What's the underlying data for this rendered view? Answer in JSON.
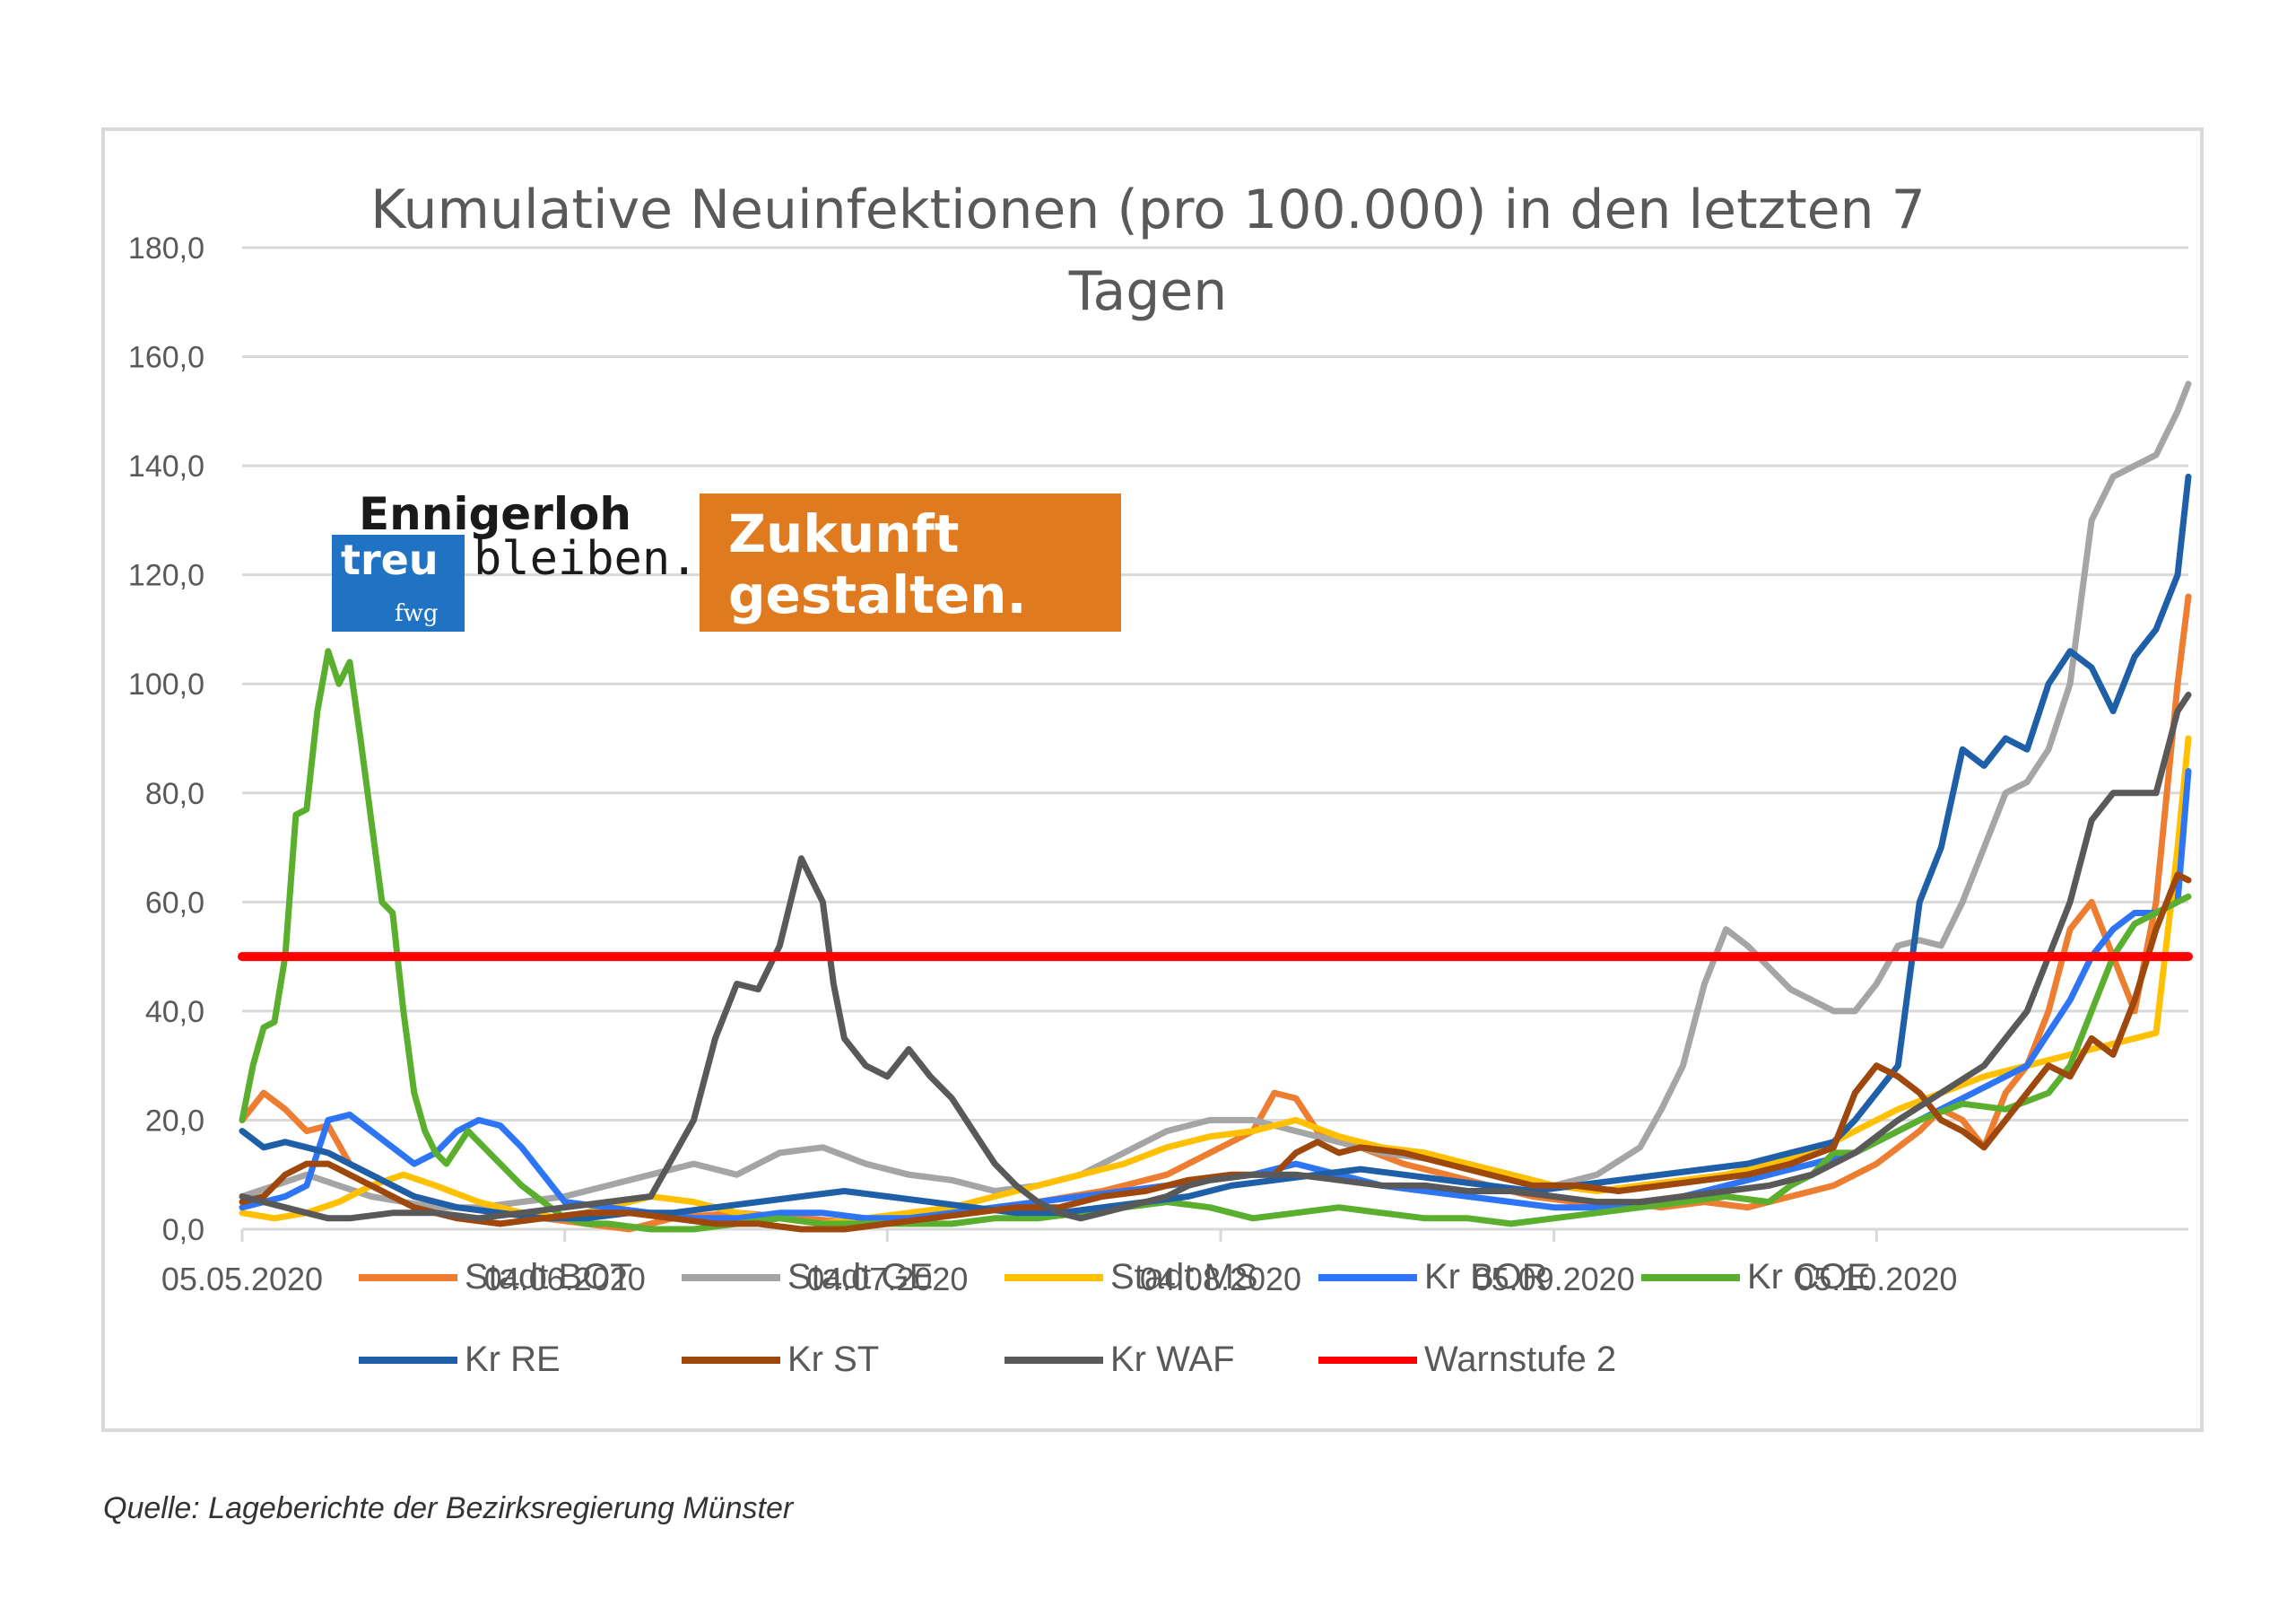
{
  "colors": {
    "stadt_bot": "#ED7D31",
    "stadt_ge": "#A5A5A5",
    "stadt_ms": "#FFC000",
    "kr_bor": "#2E75F6",
    "kr_coe": "#5BAF2E",
    "kr_re": "#1F5FA8",
    "kr_st": "#9E480E",
    "kr_waf": "#595959",
    "warnstufe": "#FF0000",
    "logo_blue": "#1F73C2",
    "logo_orange": "#E07A1E"
  },
  "logo": {
    "line1": "Ennigerloh",
    "treu": "treu",
    "bleiben": "bleiben.",
    "fwg": "fwg",
    "zukunft": "Zukunft",
    "gestalten": "gestalten."
  },
  "source": "Quelle: Lageberichte der Bezirksregierung Münster",
  "chart_data": {
    "type": "line",
    "title": "Kumulative Neuinfektionen (pro 100.000) in den letzten 7 Tagen",
    "title_lines": [
      "Kumulative Neuinfektionen (pro 100.000) in den letzten 7",
      "Tagen"
    ],
    "xlabel": "",
    "ylabel": "",
    "ylim": [
      0,
      180
    ],
    "yticks": [
      "0,0",
      "20,0",
      "40,0",
      "60,0",
      "80,0",
      "100,0",
      "120,0",
      "140,0",
      "160,0",
      "180,0"
    ],
    "x_day_range": [
      0,
      181
    ],
    "xticks": [
      {
        "day": 0,
        "label": "05.05.2020"
      },
      {
        "day": 30,
        "label": "04.06.2020"
      },
      {
        "day": 60,
        "label": "04.07.2020"
      },
      {
        "day": 91,
        "label": "04.08.2020"
      },
      {
        "day": 122,
        "label": "05.09.2020"
      },
      {
        "day": 152,
        "label": "05.10.2020"
      }
    ],
    "grid": true,
    "legend_position": "bottom",
    "series": [
      {
        "key": "stadt_bot",
        "name": "Stadt BOT",
        "x": [
          0,
          2,
          4,
          6,
          8,
          10,
          12,
          14,
          16,
          18,
          20,
          24,
          28,
          32,
          36,
          40,
          46,
          52,
          58,
          64,
          70,
          74,
          80,
          86,
          90,
          94,
          96,
          98,
          100,
          104,
          108,
          112,
          116,
          120,
          124,
          128,
          132,
          136,
          140,
          144,
          146,
          148,
          150,
          152,
          156,
          158,
          160,
          162,
          164,
          166,
          168,
          170,
          172,
          174,
          176,
          178,
          180,
          181
        ],
        "values": [
          20,
          25,
          22,
          18,
          19,
          12,
          10,
          8,
          6,
          5,
          4,
          3,
          2,
          1,
          0,
          2,
          3,
          2,
          1,
          2,
          4,
          5,
          7,
          10,
          14,
          18,
          25,
          24,
          18,
          15,
          12,
          10,
          8,
          6,
          5,
          5,
          4,
          5,
          4,
          6,
          7,
          8,
          10,
          12,
          18,
          22,
          20,
          15,
          25,
          30,
          40,
          55,
          60,
          50,
          40,
          60,
          100,
          116
        ]
      },
      {
        "key": "stadt_ge",
        "name": "Stadt GE",
        "x": [
          0,
          3,
          6,
          9,
          12,
          15,
          18,
          22,
          26,
          30,
          34,
          38,
          42,
          46,
          50,
          54,
          58,
          62,
          66,
          70,
          74,
          78,
          82,
          86,
          90,
          94,
          98,
          102,
          106,
          110,
          114,
          118,
          122,
          126,
          130,
          132,
          134,
          136,
          138,
          140,
          142,
          144,
          146,
          148,
          150,
          152,
          154,
          156,
          158,
          160,
          162,
          164,
          166,
          168,
          170,
          172,
          174,
          176,
          178,
          180,
          181
        ],
        "values": [
          6,
          8,
          10,
          8,
          6,
          5,
          4,
          4,
          5,
          6,
          8,
          10,
          12,
          10,
          14,
          15,
          12,
          10,
          9,
          7,
          8,
          10,
          14,
          18,
          20,
          20,
          18,
          16,
          14,
          13,
          12,
          10,
          8,
          10,
          15,
          22,
          30,
          45,
          55,
          52,
          48,
          44,
          42,
          40,
          40,
          45,
          52,
          53,
          52,
          60,
          70,
          80,
          82,
          88,
          100,
          130,
          138,
          140,
          142,
          150,
          155
        ]
      },
      {
        "key": "stadt_ms",
        "name": "Stadt MS",
        "x": [
          0,
          3,
          6,
          9,
          12,
          15,
          18,
          22,
          26,
          30,
          34,
          38,
          42,
          46,
          50,
          54,
          58,
          62,
          66,
          70,
          74,
          78,
          82,
          86,
          90,
          94,
          98,
          102,
          106,
          110,
          114,
          118,
          122,
          126,
          130,
          134,
          138,
          142,
          146,
          150,
          154,
          158,
          162,
          166,
          170,
          172,
          174,
          176,
          178,
          180,
          181
        ],
        "values": [
          3,
          2,
          3,
          5,
          8,
          10,
          8,
          5,
          3,
          2,
          4,
          6,
          5,
          3,
          2,
          1,
          2,
          3,
          4,
          6,
          8,
          10,
          12,
          15,
          17,
          18,
          20,
          17,
          15,
          14,
          12,
          10,
          8,
          7,
          8,
          9,
          10,
          12,
          14,
          18,
          22,
          25,
          28,
          30,
          32,
          33,
          34,
          35,
          36,
          70,
          90
        ]
      },
      {
        "key": "kr_bor",
        "name": "Kr BOR",
        "x": [
          0,
          2,
          4,
          6,
          8,
          10,
          12,
          14,
          16,
          18,
          20,
          22,
          24,
          26,
          28,
          30,
          34,
          38,
          42,
          46,
          50,
          54,
          58,
          62,
          66,
          70,
          74,
          78,
          82,
          86,
          90,
          94,
          98,
          102,
          106,
          110,
          114,
          118,
          122,
          126,
          130,
          134,
          138,
          142,
          146,
          150,
          152,
          156,
          160,
          164,
          166,
          168,
          170,
          172,
          174,
          176,
          178,
          180,
          181
        ],
        "values": [
          4,
          5,
          6,
          8,
          20,
          21,
          18,
          15,
          12,
          14,
          18,
          20,
          19,
          15,
          10,
          5,
          4,
          3,
          2,
          2,
          3,
          3,
          2,
          2,
          3,
          4,
          5,
          6,
          7,
          8,
          9,
          10,
          12,
          10,
          8,
          7,
          6,
          5,
          4,
          4,
          5,
          6,
          8,
          10,
          12,
          14,
          16,
          20,
          24,
          28,
          30,
          36,
          42,
          50,
          55,
          58,
          58,
          60,
          84
        ]
      },
      {
        "key": "kr_coe",
        "name": "Kr COE",
        "x": [
          0,
          1,
          2,
          3,
          4,
          5,
          6,
          7,
          8,
          9,
          10,
          11,
          12,
          13,
          14,
          15,
          16,
          17,
          18,
          19,
          20,
          21,
          22,
          24,
          26,
          28,
          30,
          32,
          34,
          38,
          42,
          46,
          50,
          54,
          58,
          62,
          66,
          70,
          74,
          78,
          82,
          86,
          90,
          94,
          98,
          102,
          106,
          110,
          114,
          118,
          122,
          126,
          130,
          134,
          138,
          142,
          144,
          146,
          148,
          150,
          152,
          156,
          160,
          164,
          168,
          170,
          172,
          174,
          176,
          178,
          180,
          181
        ],
        "values": [
          20,
          30,
          37,
          38,
          50,
          76,
          77,
          95,
          106,
          100,
          104,
          90,
          75,
          60,
          58,
          40,
          25,
          18,
          14,
          12,
          15,
          18,
          16,
          12,
          8,
          5,
          2,
          1,
          1,
          0,
          0,
          1,
          2,
          1,
          1,
          1,
          1,
          2,
          2,
          3,
          4,
          5,
          4,
          2,
          3,
          4,
          3,
          2,
          2,
          1,
          2,
          3,
          4,
          5,
          6,
          5,
          8,
          10,
          14,
          14,
          16,
          20,
          23,
          22,
          25,
          30,
          40,
          50,
          56,
          58,
          60,
          61
        ]
      },
      {
        "key": "kr_re",
        "name": "Kr RE",
        "x": [
          0,
          2,
          4,
          6,
          8,
          10,
          12,
          14,
          16,
          18,
          20,
          24,
          28,
          32,
          36,
          40,
          44,
          48,
          52,
          56,
          60,
          64,
          68,
          72,
          76,
          80,
          84,
          88,
          92,
          96,
          100,
          104,
          108,
          112,
          116,
          120,
          124,
          128,
          132,
          136,
          140,
          144,
          148,
          150,
          152,
          154,
          156,
          158,
          160,
          162,
          164,
          166,
          168,
          170,
          172,
          174,
          176,
          178,
          180,
          181
        ],
        "values": [
          18,
          15,
          16,
          15,
          14,
          12,
          10,
          8,
          6,
          5,
          4,
          3,
          2,
          2,
          3,
          3,
          4,
          5,
          6,
          7,
          6,
          5,
          4,
          3,
          3,
          4,
          5,
          6,
          8,
          9,
          10,
          11,
          10,
          9,
          8,
          7,
          8,
          9,
          10,
          11,
          12,
          14,
          16,
          20,
          25,
          30,
          60,
          70,
          88,
          85,
          90,
          88,
          100,
          106,
          103,
          95,
          105,
          110,
          120,
          138
        ]
      },
      {
        "key": "kr_st",
        "name": "Kr ST",
        "x": [
          0,
          2,
          4,
          6,
          8,
          10,
          12,
          14,
          16,
          18,
          20,
          24,
          28,
          32,
          36,
          40,
          44,
          48,
          52,
          56,
          60,
          64,
          68,
          72,
          76,
          80,
          84,
          88,
          92,
          96,
          98,
          100,
          102,
          104,
          108,
          112,
          116,
          120,
          124,
          128,
          132,
          136,
          140,
          144,
          148,
          150,
          152,
          154,
          156,
          158,
          160,
          162,
          164,
          166,
          168,
          170,
          172,
          174,
          176,
          178,
          180,
          181
        ],
        "values": [
          5,
          6,
          10,
          12,
          12,
          10,
          8,
          6,
          4,
          3,
          2,
          1,
          2,
          3,
          3,
          2,
          1,
          1,
          0,
          0,
          1,
          2,
          3,
          4,
          4,
          6,
          7,
          9,
          10,
          10,
          14,
          16,
          14,
          15,
          14,
          12,
          10,
          8,
          8,
          7,
          8,
          9,
          10,
          12,
          15,
          25,
          30,
          28,
          25,
          20,
          18,
          15,
          20,
          25,
          30,
          28,
          35,
          32,
          42,
          55,
          65,
          64
        ]
      },
      {
        "key": "kr_waf",
        "name": "Kr WAF",
        "x": [
          0,
          2,
          4,
          6,
          8,
          10,
          14,
          18,
          22,
          26,
          30,
          34,
          38,
          42,
          44,
          46,
          48,
          50,
          52,
          54,
          55,
          56,
          58,
          60,
          62,
          64,
          66,
          68,
          70,
          72,
          74,
          76,
          78,
          80,
          82,
          84,
          86,
          88,
          90,
          94,
          98,
          102,
          106,
          110,
          114,
          118,
          122,
          126,
          130,
          134,
          138,
          142,
          146,
          150,
          154,
          158,
          162,
          166,
          170,
          172,
          174,
          176,
          178,
          180,
          181
        ],
        "values": [
          6,
          5,
          4,
          3,
          2,
          2,
          3,
          3,
          2,
          3,
          4,
          5,
          6,
          20,
          35,
          45,
          44,
          52,
          68,
          60,
          45,
          35,
          30,
          28,
          33,
          28,
          24,
          18,
          12,
          8,
          5,
          3,
          2,
          3,
          4,
          5,
          6,
          8,
          9,
          10,
          10,
          9,
          8,
          8,
          7,
          7,
          6,
          5,
          5,
          6,
          7,
          8,
          10,
          14,
          20,
          25,
          30,
          40,
          60,
          75,
          80,
          80,
          80,
          95,
          98
        ]
      },
      {
        "key": "warnstufe",
        "name": "Warnstufe 2",
        "x": [
          0,
          181
        ],
        "values": [
          50,
          50
        ]
      }
    ]
  }
}
